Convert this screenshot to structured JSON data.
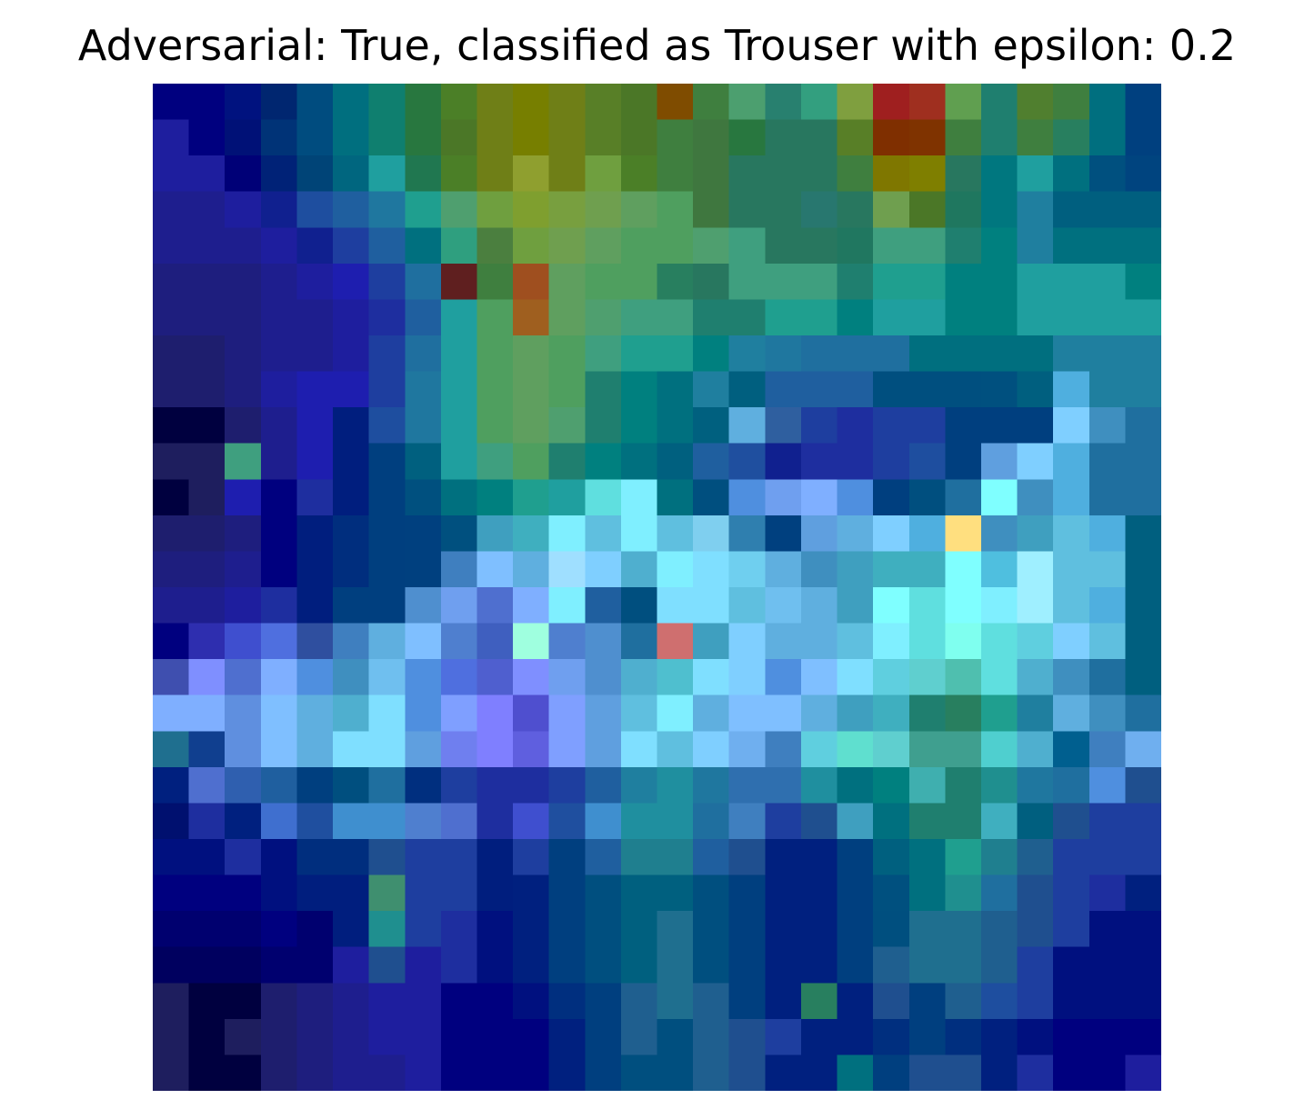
{
  "chart_data": {
    "type": "heatmap",
    "title": "Adversarial: True, classified as Trouser with epsilon: 0.2",
    "adversarial": "True",
    "classified_as": "Trouser",
    "epsilon": 0.2,
    "rows": 28,
    "cols": 28,
    "axes": "off",
    "grid": false,
    "legend": "none",
    "pixels": [
      [
        "#00007f",
        "#00007f",
        "#00127f",
        "#002670",
        "#004c7f",
        "#006f7f",
        "#0f7f6f",
        "#28773f",
        "#4b7f27",
        "#6f7f17",
        "#777f00",
        "#6f7f17",
        "#587f27",
        "#4b7727",
        "#7f4c00",
        "#3f7f3f",
        "#4c9f6f",
        "#28806f",
        "#339f7f",
        "#7f9f3f",
        "#9f1f1f",
        "#9f2f1f",
        "#609f50",
        "#1f7f6f",
        "#507f2f",
        "#3f7f3f",
        "#006f7f",
        "#00407f"
      ],
      [
        "#1e1e9e",
        "#00007f",
        "#001177",
        "#003377",
        "#004c7f",
        "#006f7f",
        "#0f7f6f",
        "#28773f",
        "#4b7727",
        "#6f7f17",
        "#777f00",
        "#6f7f17",
        "#587f27",
        "#4b7727",
        "#3f7f3f",
        "#3f773f",
        "#28773f",
        "#28775f",
        "#28775f",
        "#587f27",
        "#7f2f00",
        "#7f3300",
        "#3f7f3f",
        "#1f7f6f",
        "#3f7f3f",
        "#287f5f",
        "#006f7f",
        "#00407f"
      ],
      [
        "#1e1e9e",
        "#1e1e9e",
        "#000077",
        "#002277",
        "#004477",
        "#00667f",
        "#1f9f9f",
        "#207750",
        "#4b7f27",
        "#6f7f17",
        "#8f9f2f",
        "#6f7f17",
        "#6f9f3f",
        "#4b7f27",
        "#3f7f3f",
        "#3f773f",
        "#28775f",
        "#28775f",
        "#28775f",
        "#3f7f3f",
        "#7f7700",
        "#7f7f00",
        "#28775f",
        "#00777f",
        "#1f9f9f",
        "#00707f",
        "#00507f",
        "#00447f"
      ],
      [
        "#1e1e8e",
        "#1e1e8e",
        "#1e1e9e",
        "#10208f",
        "#1e4e9f",
        "#1f5f9f",
        "#1f779f",
        "#1f9f8f",
        "#4f9f6f",
        "#6f9f3f",
        "#7f9f2f",
        "#789f3f",
        "#6f9f4f",
        "#5f9f5f",
        "#4f9f5f",
        "#3f773f",
        "#28775f",
        "#28775f",
        "#28776f",
        "#28775f",
        "#6f9f4f",
        "#4b7727",
        "#1f775f",
        "#00777f",
        "#1f7f9f",
        "#005f7f",
        "#005f7f",
        "#005f7f"
      ],
      [
        "#1e1e8e",
        "#1e1e8e",
        "#1e1e8e",
        "#1e1e9e",
        "#10208f",
        "#1e3e9f",
        "#1f5f9f",
        "#00707f",
        "#2f9f7f",
        "#4b7f3f",
        "#6f9f3f",
        "#6f9f4f",
        "#5f9f5f",
        "#4f9f5f",
        "#4f9f5f",
        "#4f9f6f",
        "#3f9f7f",
        "#28775f",
        "#28775f",
        "#207760",
        "#3f9f7f",
        "#3f9f7f",
        "#1f7f6f",
        "#00807f",
        "#1f7f9f",
        "#00707f",
        "#00707f",
        "#00707f"
      ],
      [
        "#1e1e7e",
        "#1e1e7e",
        "#1e1e7e",
        "#1e1e8e",
        "#1e1e9e",
        "#1e1eaf",
        "#1e3e9f",
        "#1f6f9f",
        "#5f1f1f",
        "#3f7f3f",
        "#9f4f1f",
        "#5f9f5f",
        "#4f9f5f",
        "#4f9f5f",
        "#287f5f",
        "#28775f",
        "#3f9f7f",
        "#3f9f7f",
        "#3f9f7f",
        "#1f7f6f",
        "#1f9f8f",
        "#1f9f8f",
        "#00807f",
        "#00807f",
        "#1f9f9f",
        "#1f9f9f",
        "#1f9f9f",
        "#00807f"
      ],
      [
        "#1e1e7e",
        "#1e1e7e",
        "#1e1e7e",
        "#1e1e8e",
        "#1e1e8e",
        "#1e1e9e",
        "#1e2e9f",
        "#1f5f9f",
        "#1f9f9f",
        "#4f9f5f",
        "#9f5f1f",
        "#5f9f5f",
        "#4f9f6f",
        "#3f9f7f",
        "#3f9f7f",
        "#1f7f6f",
        "#1f7f6f",
        "#1f9f8f",
        "#1f9f8f",
        "#00807f",
        "#1f9f9f",
        "#1f9f9f",
        "#00807f",
        "#00807f",
        "#1f9f9f",
        "#1f9f9f",
        "#1f9f9f",
        "#1f9f9f"
      ],
      [
        "#1e1e6e",
        "#1e1e6e",
        "#1e1e7e",
        "#1e1e8e",
        "#1e1e8e",
        "#1e1e9e",
        "#1e3e9f",
        "#1f6f9f",
        "#1f9f9f",
        "#4f9f5f",
        "#5f9f5f",
        "#4f9f5f",
        "#3f9f7f",
        "#1f9f8f",
        "#1f9f8f",
        "#00807f",
        "#1f7f9f",
        "#1f779f",
        "#1f6f9f",
        "#1f6f9f",
        "#1f6f9f",
        "#006f7f",
        "#006f7f",
        "#006f7f",
        "#006f7f",
        "#1f7f9f",
        "#1f7f9f",
        "#1f7f9f"
      ],
      [
        "#1e1e6e",
        "#1e1e6e",
        "#1e1e7e",
        "#1e1e9e",
        "#1e1eaf",
        "#1e1eaf",
        "#1e3e9f",
        "#1f779f",
        "#1f9f9f",
        "#4f9f5f",
        "#5f9f5f",
        "#4f9f5f",
        "#1f7f6f",
        "#00807f",
        "#00707f",
        "#1f7f9f",
        "#005f7f",
        "#1f5f9f",
        "#1f5f9f",
        "#1f5f9f",
        "#004f7f",
        "#004f7f",
        "#004f7f",
        "#00507f",
        "#005f7f",
        "#4fafdf",
        "#1f7f9f",
        "#1f7f9f"
      ],
      [
        "#00003f",
        "#00003f",
        "#1e1e6e",
        "#1e1e8e",
        "#1e1eaf",
        "#001e7e",
        "#1e4e9f",
        "#1f779f",
        "#1f9f9f",
        "#4f9f5f",
        "#5f9f5f",
        "#4f9f6f",
        "#1f7f6f",
        "#00807f",
        "#00707f",
        "#00607f",
        "#5fafdf",
        "#2f5f9f",
        "#1e3e9f",
        "#1e2e9f",
        "#1e3e9f",
        "#1e3e9f",
        "#003f7f",
        "#003f7f",
        "#003f7f",
        "#7fcfff",
        "#3f8fbf",
        "#1f6f9f"
      ],
      [
        "#1e1e5e",
        "#1e1e5e",
        "#3f9f7f",
        "#1e1e8e",
        "#1e1eaf",
        "#001e7e",
        "#003f7f",
        "#00607f",
        "#1f9f9f",
        "#3f9f7f",
        "#4f9f5f",
        "#1f7f6f",
        "#00807f",
        "#00707f",
        "#00607f",
        "#1f5f9f",
        "#1f4f9f",
        "#10208f",
        "#1e2e9f",
        "#1e2e9f",
        "#1e3e9f",
        "#1e4e9f",
        "#003f7f",
        "#5f9fdf",
        "#7fcfff",
        "#4fafdf",
        "#1f6f9f",
        "#1f6f9f"
      ],
      [
        "#00003f",
        "#1e1e5e",
        "#1e1eaf",
        "#00007f",
        "#1e2e9f",
        "#001e7e",
        "#003f7f",
        "#00507f",
        "#00707f",
        "#00807f",
        "#1f9f8f",
        "#1f9f9f",
        "#5fdfdf",
        "#7fefff",
        "#00707f",
        "#004f7f",
        "#4f8fdf",
        "#6f9fef",
        "#7fafff",
        "#4f8fdf",
        "#003f7f",
        "#004f7f",
        "#1f6f9f",
        "#7fffff",
        "#3f8fbf",
        "#4fafdf",
        "#1f6f9f",
        "#1f6f9f"
      ],
      [
        "#1e1e6e",
        "#1e1e6e",
        "#1e1e7e",
        "#00007f",
        "#001e7e",
        "#002e7e",
        "#003f7f",
        "#00407f",
        "#00507f",
        "#3f9fbf",
        "#3fafbf",
        "#7fefff",
        "#5fbfdf",
        "#7fefff",
        "#5fbfdf",
        "#7fcfef",
        "#2f7faf",
        "#00407f",
        "#5f9fdf",
        "#5fafdf",
        "#7fcfff",
        "#4fafdf",
        "#ffdf7f",
        "#3f8fbf",
        "#3f9fbf",
        "#5fbfdf",
        "#4fafdf",
        "#005f7f"
      ],
      [
        "#1e1e7e",
        "#1e1e7e",
        "#1e1e8e",
        "#00007f",
        "#001e7e",
        "#002e7e",
        "#003f7f",
        "#00407f",
        "#3f7fbf",
        "#7fbfff",
        "#5fafdf",
        "#9fdfff",
        "#7fcfff",
        "#4fafcf",
        "#7fefff",
        "#7fdfff",
        "#6fcfef",
        "#5fafdf",
        "#3f8fbf",
        "#3f9fbf",
        "#3fafbf",
        "#3fafbf",
        "#7fffff",
        "#4fbfdf",
        "#9fefff",
        "#5fbfdf",
        "#5fbfdf",
        "#005f7f"
      ],
      [
        "#1e1e8e",
        "#1e1e8e",
        "#1e1e9e",
        "#1e2e9f",
        "#001e7e",
        "#003f7f",
        "#003f7f",
        "#4f8fcf",
        "#6f9fef",
        "#4f6fcf",
        "#7fafff",
        "#7fefff",
        "#1f5f9f",
        "#004f7f",
        "#7fdfff",
        "#7fdfff",
        "#5fbfdf",
        "#6fbfef",
        "#5fafdf",
        "#3f9fbf",
        "#7fffff",
        "#5fdfdf",
        "#7fffff",
        "#7fefff",
        "#9fefff",
        "#5fbfdf",
        "#4fafdf",
        "#005f7f"
      ],
      [
        "#00007f",
        "#2e2eaf",
        "#3f4fcf",
        "#4f6fdf",
        "#2f4f9f",
        "#3f7fbf",
        "#5fafdf",
        "#7fbfff",
        "#4f7fcf",
        "#3f5fbf",
        "#9fffdf",
        "#4f7fcf",
        "#4f8fcf",
        "#1f6f9f",
        "#cf6f6f",
        "#3f9fbf",
        "#7fcfff",
        "#5fafdf",
        "#5fafdf",
        "#5fbfdf",
        "#7fefff",
        "#5fdfdf",
        "#7fffef",
        "#5fdfdf",
        "#5fcfdf",
        "#7fcfff",
        "#5fbfdf",
        "#005f7f"
      ],
      [
        "#3f4faf",
        "#7f8fff",
        "#4f6fcf",
        "#7fafff",
        "#4f8fdf",
        "#3f8fbf",
        "#6fbfef",
        "#4f8fdf",
        "#4f6fdf",
        "#4f5fcf",
        "#7f8fff",
        "#6f9fef",
        "#4f8fcf",
        "#4fafcf",
        "#4fbfcf",
        "#7fdfff",
        "#7fcfff",
        "#4f8fdf",
        "#7fbfff",
        "#7fdfff",
        "#5fcfdf",
        "#5fcfcf",
        "#4fbfaf",
        "#5fdfdf",
        "#4fafcf",
        "#3f8fbf",
        "#1f6f9f",
        "#005f7f"
      ],
      [
        "#7fafff",
        "#7fafff",
        "#5f8fdf",
        "#7fbfff",
        "#5fafdf",
        "#4fafcf",
        "#7fdfff",
        "#4f8fdf",
        "#7f9fff",
        "#7f7fff",
        "#4f4fcf",
        "#7f9fff",
        "#5f9fdf",
        "#5fbfdf",
        "#7fefff",
        "#5fafdf",
        "#7fbfff",
        "#7fbfff",
        "#5fafdf",
        "#3f9fbf",
        "#3fafbf",
        "#1f7f6f",
        "#287f5f",
        "#1f9f8f",
        "#1f7f9f",
        "#5fafdf",
        "#3f8fbf",
        "#1f6f9f"
      ],
      [
        "#1f6f8f",
        "#103f8f",
        "#5f8fdf",
        "#7fbfff",
        "#5fafdf",
        "#7fdfff",
        "#7fdfff",
        "#5f9fdf",
        "#6f7fef",
        "#7f7fff",
        "#5f5fdf",
        "#7f9fff",
        "#5f9fdf",
        "#7fdfff",
        "#5fbfdf",
        "#7fcfff",
        "#6fafef",
        "#3f7fbf",
        "#5fcfdf",
        "#5fdfcf",
        "#5fcfcf",
        "#3f9f8f",
        "#3f9f8f",
        "#4fcfcf",
        "#4fafcf",
        "#005f8f",
        "#3f7fbf",
        "#6fafef"
      ],
      [
        "#00207f",
        "#4f6fcf",
        "#2f5faf",
        "#1f5f9f",
        "#003f7f",
        "#004f7f",
        "#1f6f9f",
        "#002f7f",
        "#1e3e9f",
        "#1e2e9f",
        "#1e2e9f",
        "#1e3e9f",
        "#1f5f9f",
        "#1f7f9f",
        "#1f8f9f",
        "#1f779f",
        "#2f6faf",
        "#2f6faf",
        "#1f8f9f",
        "#00707f",
        "#00807f",
        "#3fafaf",
        "#1f7f6f",
        "#1f8f8f",
        "#1f779f",
        "#1f6f9f",
        "#4f8fdf",
        "#1f4f8f"
      ],
      [
        "#00106f",
        "#1e2e9f",
        "#00207f",
        "#3f6fcf",
        "#1f4f9f",
        "#3f8fcf",
        "#3f8fcf",
        "#4f7fcf",
        "#4f6fcf",
        "#1e2e9f",
        "#3f4fcf",
        "#1f4f9f",
        "#3f8fcf",
        "#1f8f9f",
        "#1f8f9f",
        "#1f6f9f",
        "#3f7fbf",
        "#1e3e9f",
        "#1f4f8f",
        "#3f9fbf",
        "#00707f",
        "#1f7f6f",
        "#1f7f6f",
        "#3fafbf",
        "#005f7f",
        "#1f4f8f",
        "#1e3e9f",
        "#1e3e9f"
      ],
      [
        "#00107f",
        "#00107f",
        "#1e2e9f",
        "#00107f",
        "#002e7e",
        "#002e7e",
        "#1f4f8f",
        "#1e3e9f",
        "#1e3e9f",
        "#001e7e",
        "#1e3e9f",
        "#003f7f",
        "#1f5f9f",
        "#1f7f8f",
        "#1f7f8f",
        "#1f5f9f",
        "#1f4f8f",
        "#00207f",
        "#00207f",
        "#003f7f",
        "#00607f",
        "#00707f",
        "#1f9f8f",
        "#1f7f8f",
        "#1f5f8f",
        "#1e3e9f",
        "#1e3e9f",
        "#1e3e9f"
      ],
      [
        "#00007f",
        "#00007f",
        "#00007f",
        "#00107f",
        "#001e7e",
        "#001e7e",
        "#3f8f6f",
        "#1e3e9f",
        "#1e3e9f",
        "#001e7e",
        "#00207f",
        "#003f7f",
        "#004f7f",
        "#00607f",
        "#00607f",
        "#004f7f",
        "#003f7f",
        "#00207f",
        "#00207f",
        "#003f7f",
        "#00507f",
        "#00707f",
        "#1f8f8f",
        "#1f6f9f",
        "#1f4f8f",
        "#1e3e9f",
        "#1e2e9f",
        "#00207f"
      ],
      [
        "#00006f",
        "#00006f",
        "#00006f",
        "#00007f",
        "#00006f",
        "#001e7e",
        "#1f8f8f",
        "#1e3e9f",
        "#1e2e9f",
        "#00107f",
        "#00207f",
        "#003f7f",
        "#004f7f",
        "#00607f",
        "#1f6f8f",
        "#004f7f",
        "#003f7f",
        "#00207f",
        "#00207f",
        "#003f7f",
        "#004f7f",
        "#1f6f8f",
        "#1f6f8f",
        "#1f5f8f",
        "#1f4f8f",
        "#1e3e9f",
        "#00107f",
        "#00107f"
      ],
      [
        "#00005f",
        "#00005f",
        "#00005f",
        "#00006f",
        "#00006f",
        "#1e1e9e",
        "#1f4f8f",
        "#1e1e9e",
        "#1e2e9f",
        "#00107f",
        "#00207f",
        "#003f7f",
        "#004f7f",
        "#00607f",
        "#1f6f8f",
        "#004f7f",
        "#003f7f",
        "#00207f",
        "#00207f",
        "#003f7f",
        "#1f5f8f",
        "#1f6f8f",
        "#1f6f8f",
        "#1f5f8f",
        "#1e3e9f",
        "#00107f",
        "#00107f",
        "#00107f"
      ],
      [
        "#1e1e5e",
        "#00003f",
        "#00003f",
        "#1e1e6e",
        "#1e1e7e",
        "#1e1e8e",
        "#1e1e9e",
        "#1e1e9e",
        "#00007f",
        "#00007f",
        "#00107f",
        "#002f7f",
        "#003f7f",
        "#1f5f8f",
        "#1f6f8f",
        "#1f5f8f",
        "#003f7f",
        "#00207f",
        "#287f5f",
        "#00207f",
        "#1f4f8f",
        "#003f7f",
        "#1f5f8f",
        "#1e4e9f",
        "#1e3e9f",
        "#00107f",
        "#00107f",
        "#00107f"
      ],
      [
        "#1e1e5e",
        "#00003f",
        "#1e1e5e",
        "#1e1e6e",
        "#1e1e7e",
        "#1e1e8e",
        "#1e1e9e",
        "#1e1e9e",
        "#00007f",
        "#00007f",
        "#00007f",
        "#00207f",
        "#003f7f",
        "#1f5f8f",
        "#004f7f",
        "#1f5f8f",
        "#1f4f8f",
        "#1e3e9f",
        "#00207f",
        "#00207f",
        "#002f7f",
        "#003f7f",
        "#002f7f",
        "#00207f",
        "#00107f",
        "#00007f",
        "#00007f",
        "#00007f"
      ],
      [
        "#1e1e5e",
        "#00003f",
        "#00003f",
        "#1e1e6e",
        "#1e1e7e",
        "#1e1e8e",
        "#1e1e8e",
        "#1e1e9e",
        "#00007f",
        "#00007f",
        "#00007f",
        "#00207f",
        "#003f7f",
        "#004f7f",
        "#004f7f",
        "#1f5f8f",
        "#1f4f8f",
        "#00207f",
        "#00207f",
        "#00707f",
        "#003f7f",
        "#1f4f8f",
        "#1f4f8f",
        "#00207f",
        "#1e2e9f",
        "#00007f",
        "#00007f",
        "#1e1e9e"
      ]
    ]
  }
}
